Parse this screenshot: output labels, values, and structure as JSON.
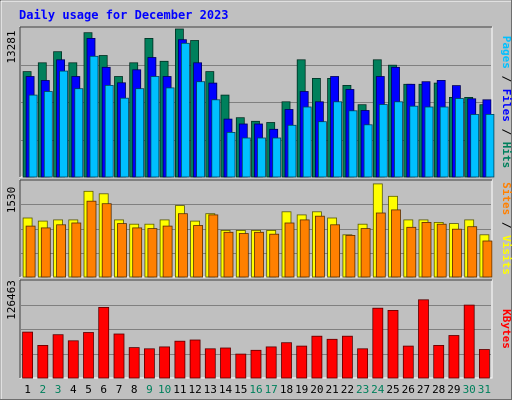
{
  "chart_data": {
    "type": "bar",
    "title": "Daily usage for December 2023",
    "categories": [
      "1",
      "2",
      "3",
      "4",
      "5",
      "6",
      "7",
      "8",
      "9",
      "10",
      "11",
      "12",
      "13",
      "14",
      "15",
      "16",
      "17",
      "18",
      "19",
      "20",
      "21",
      "22",
      "23",
      "24",
      "25",
      "26",
      "27",
      "28",
      "29",
      "30",
      "31"
    ],
    "weekend_days": [
      "2",
      "3",
      "9",
      "10",
      "16",
      "17",
      "23",
      "24",
      "30",
      "31"
    ],
    "panels": [
      {
        "id": "hits",
        "max_label": "13281",
        "ymax": 13281,
        "series": [
          {
            "name": "Hits",
            "color": "#00805c",
            "values": [
              9460,
              10250,
              11240,
              10250,
              12950,
              10900,
              9020,
              10250,
              12440,
              10380,
              13280,
              12250,
              9460,
              7350,
              5320,
              5000,
              4890,
              6750,
              10520,
              8850,
              8850,
              8220,
              6490,
              10520,
              10030,
              8320,
              8320,
              8430,
              7140,
              7140,
              6490
            ]
          },
          {
            "name": "Files",
            "color": "#0000ff",
            "values": [
              9020,
              8660,
              10520,
              9020,
              12440,
              9840,
              8450,
              9620,
              10720,
              9020,
              12320,
              10250,
              8430,
              5200,
              4760,
              4760,
              4280,
              6060,
              7670,
              6750,
              9020,
              7850,
              5970,
              9020,
              9840,
              8320,
              8550,
              8670,
              8200,
              7020,
              6930
            ]
          },
          {
            "name": "Pages",
            "color": "#00c0ff",
            "values": [
              7350,
              7670,
              9500,
              7920,
              10830,
              8220,
              7070,
              7920,
              9020,
              8000,
              12000,
              8550,
              6930,
              4000,
              3500,
              3500,
              3500,
              4640,
              6280,
              4960,
              6750,
              5940,
              4680,
              6510,
              6750,
              6350,
              6280,
              6280,
              7040,
              5610,
              5620
            ]
          }
        ]
      },
      {
        "id": "visits",
        "max_label": "1530",
        "ymax": 1530,
        "series": [
          {
            "name": "Visits",
            "color": "#ffff00",
            "values": [
              950,
              900,
              920,
              920,
              1380,
              1340,
              920,
              850,
              850,
              920,
              1150,
              900,
              1020,
              750,
              750,
              750,
              750,
              1050,
              1000,
              1050,
              950,
              680,
              850,
              1500,
              1300,
              920,
              920,
              880,
              860,
              920,
              680
            ]
          },
          {
            "name": "Sites",
            "color": "#ff8000",
            "values": [
              820,
              790,
              840,
              870,
              1220,
              1180,
              860,
              790,
              780,
              820,
              1020,
              830,
              1000,
              720,
              700,
              720,
              690,
              870,
              920,
              980,
              840,
              670,
              780,
              1030,
              1080,
              800,
              880,
              850,
              770,
              810,
              580
            ]
          }
        ]
      },
      {
        "id": "kbytes",
        "max_label": "126463",
        "ymax": 126463,
        "series": [
          {
            "name": "KBytes",
            "color": "#ff0000",
            "values": [
              60500,
              43000,
              57000,
              49000,
              60000,
              93000,
              58000,
              40000,
              38500,
              41000,
              48500,
              50000,
              38500,
              39500,
              31500,
              36500,
              41000,
              46500,
              42000,
              55000,
              51000,
              55000,
              38500,
              92000,
              89000,
              42000,
              103000,
              43000,
              56000,
              96000,
              37500
            ]
          }
        ]
      }
    ]
  }
}
